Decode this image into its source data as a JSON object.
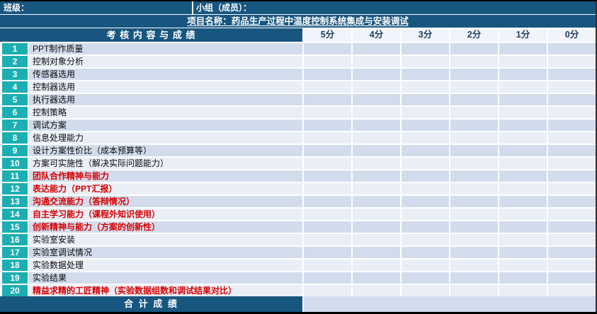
{
  "colors": {
    "dark_blue": "#17567F",
    "teal": "#1BAFB3",
    "red": "#D90000",
    "row_odd": "#D2DCEC",
    "row_even": "#E9EEF7",
    "score_header_bg": "#F1F4FB",
    "score_header_text": "#1F3A5F",
    "border_black": "#000000",
    "grid_white": "#FFFFFF"
  },
  "header": {
    "class_label": "班级：",
    "group_label": "小组（成员）：",
    "project_title": "项目名称：药品生产过程中温度控制系统集成与安装调试",
    "assessment_title": "考 核 内 容 与 成 绩",
    "score_columns": [
      "5分",
      "4分",
      "3分",
      "2分",
      "1分",
      "0分"
    ]
  },
  "rows": [
    {
      "num": "1",
      "label": "PPT制作质量",
      "highlight": false
    },
    {
      "num": "2",
      "label": "控制对象分析",
      "highlight": false
    },
    {
      "num": "3",
      "label": "传感器选用",
      "highlight": false
    },
    {
      "num": "4",
      "label": "控制器选用",
      "highlight": false
    },
    {
      "num": "5",
      "label": "执行器选用",
      "highlight": false
    },
    {
      "num": "6",
      "label": "控制策略",
      "highlight": false
    },
    {
      "num": "7",
      "label": "调试方案",
      "highlight": false
    },
    {
      "num": "8",
      "label": "信息处理能力",
      "highlight": false
    },
    {
      "num": "9",
      "label": "设计方案性价比（成本预算等）",
      "highlight": false
    },
    {
      "num": "10",
      "label": "方案可实施性（解决实际问题能力）",
      "highlight": false
    },
    {
      "num": "11",
      "label": "团队合作精神与能力",
      "highlight": true
    },
    {
      "num": "12",
      "label": "表达能力（PPT汇报）",
      "highlight": true
    },
    {
      "num": "13",
      "label": "沟通交流能力（答辩情况）",
      "highlight": true
    },
    {
      "num": "14",
      "label": "自主学习能力（课程外知识使用）",
      "highlight": true
    },
    {
      "num": "15",
      "label": "创新精神与能力（方案的创新性）",
      "highlight": true
    },
    {
      "num": "16",
      "label": "实验室安装",
      "highlight": false
    },
    {
      "num": "17",
      "label": "实验室调试情况",
      "highlight": false
    },
    {
      "num": "18",
      "label": "实验数据处理",
      "highlight": false
    },
    {
      "num": "19",
      "label": "实验结果",
      "highlight": false
    },
    {
      "num": "20",
      "label": "精益求精的工匠精神（实验数据组数和调试结果对比）",
      "highlight": true
    }
  ],
  "footer": {
    "total_label": "合 计 成 绩"
  }
}
